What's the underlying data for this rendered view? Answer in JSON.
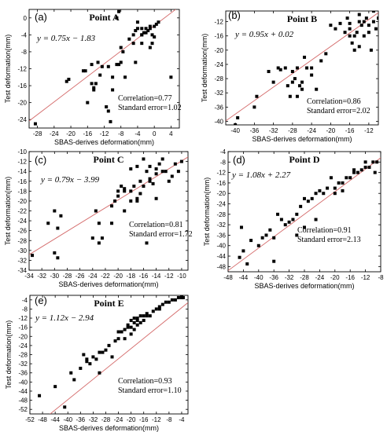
{
  "chart_data": [
    {
      "panel": "(a)",
      "title": "Point A",
      "type": "scatter",
      "xlabel": "SBAS-derives deformation(mm)",
      "ylabel": "Test deformation(mm)",
      "xlim": [
        -30,
        6
      ],
      "ylim": [
        -26,
        2
      ],
      "xticks": [
        "-28",
        "-24",
        "-20",
        "-16",
        "-12",
        "-8",
        "-4",
        "0",
        "4"
      ],
      "yticks": [
        "-24",
        "-20",
        "-16",
        "-12",
        "-8",
        "-4",
        "0"
      ],
      "equation": "y = 0.75x − 1.83",
      "correlation": "Correlation=0.77",
      "std_error": "Standard error=1.02",
      "fit": {
        "slope": 0.75,
        "intercept": -1.83
      },
      "points": [
        [
          -28.5,
          -25
        ],
        [
          -21,
          -15
        ],
        [
          -20.5,
          -14.5
        ],
        [
          -17,
          -12.5
        ],
        [
          -16.5,
          -12.5
        ],
        [
          -16,
          -20
        ],
        [
          -15,
          -11
        ],
        [
          -15,
          -15.5
        ],
        [
          -14.5,
          -16.5
        ],
        [
          -14.5,
          -17
        ],
        [
          -14,
          -15.5
        ],
        [
          -13.5,
          -10.5
        ],
        [
          -13,
          -13.5
        ],
        [
          -12.5,
          -11.5
        ],
        [
          -11.5,
          -21
        ],
        [
          -11,
          -22
        ],
        [
          -10.5,
          -24.5
        ],
        [
          -11,
          -11.5
        ],
        [
          -10,
          -17
        ],
        [
          -10,
          -14
        ],
        [
          -9,
          -11
        ],
        [
          -8.5,
          -11
        ],
        [
          -8,
          -7
        ],
        [
          -7.5,
          -8
        ],
        [
          -7,
          -14
        ],
        [
          -6,
          -5
        ],
        [
          -5,
          -6
        ],
        [
          -5,
          -4
        ],
        [
          -4.5,
          -3
        ],
        [
          -4,
          -1
        ],
        [
          -4,
          -2.5
        ],
        [
          -3,
          -4
        ],
        [
          -3,
          -6
        ],
        [
          -2.5,
          -3.5
        ],
        [
          -2,
          -2.5
        ],
        [
          -1.5,
          -3
        ],
        [
          -1,
          -2
        ],
        [
          -0.5,
          -4
        ],
        [
          0,
          -2
        ],
        [
          0.5,
          -1.5
        ],
        [
          1,
          -1
        ],
        [
          -8,
          -10.5
        ],
        [
          -9,
          0
        ],
        [
          -8.5,
          1.5
        ],
        [
          -4.5,
          -10.5
        ],
        [
          -3,
          -4
        ],
        [
          -3,
          -2.5
        ],
        [
          -2,
          -3.5
        ],
        [
          -1,
          -2.5
        ],
        [
          -0.5,
          -6
        ],
        [
          0,
          -4.5
        ],
        [
          -1,
          -7
        ],
        [
          4,
          -14
        ]
      ]
    },
    {
      "panel": "(b)",
      "title": "Point B",
      "type": "scatter",
      "xlabel": "SBAS-derives deformation(mm)",
      "ylabel": "Test deformation(mm)",
      "xlim": [
        -42,
        -10
      ],
      "ylim": [
        -41,
        -9
      ],
      "xticks": [
        "-40",
        "-36",
        "-32",
        "-28",
        "-24",
        "-20",
        "-16",
        "-12"
      ],
      "yticks": [
        "-40",
        "-36",
        "-32",
        "-28",
        "-24",
        "-20",
        "-16",
        "-12"
      ],
      "equation": "y = 0.95x + 0.02",
      "correlation": "Correlation=0.86",
      "std_error": "Standard error=2.02",
      "fit": {
        "slope": 0.95,
        "intercept": 0.02
      },
      "points": [
        [
          -40,
          -41
        ],
        [
          -39.5,
          -39
        ],
        [
          -36,
          -36
        ],
        [
          -35.5,
          -33
        ],
        [
          -33,
          -26
        ],
        [
          -32,
          -29
        ],
        [
          -31,
          -25
        ],
        [
          -30.5,
          -25.5
        ],
        [
          -29.5,
          -25
        ],
        [
          -29,
          -30
        ],
        [
          -28.5,
          -33
        ],
        [
          -28,
          -26
        ],
        [
          -28,
          -29
        ],
        [
          -27.5,
          -28
        ],
        [
          -27,
          -25
        ],
        [
          -27,
          -33
        ],
        [
          -26.5,
          -30
        ],
        [
          -26,
          -29
        ],
        [
          -26,
          -31
        ],
        [
          -25.5,
          -22
        ],
        [
          -25,
          -25
        ],
        [
          -24,
          -25
        ],
        [
          -24,
          -27
        ],
        [
          -23,
          -31
        ],
        [
          -22,
          -23
        ],
        [
          -21,
          -21
        ],
        [
          -20,
          -13
        ],
        [
          -19,
          -14
        ],
        [
          -18,
          -12.5
        ],
        [
          -17,
          -15
        ],
        [
          -16.5,
          -11
        ],
        [
          -16,
          -14
        ],
        [
          -15.5,
          -18
        ],
        [
          -15,
          -16
        ],
        [
          -14.5,
          -15
        ],
        [
          -14,
          -19
        ],
        [
          -14,
          -12
        ],
        [
          -13.5,
          -13
        ],
        [
          -13,
          -16
        ],
        [
          -12.5,
          -11
        ],
        [
          -12,
          -13
        ],
        [
          -12,
          -15
        ],
        [
          -11.5,
          -20
        ],
        [
          -11,
          -12
        ],
        [
          -11,
          -9
        ],
        [
          -10.5,
          -14
        ],
        [
          -10,
          -11
        ],
        [
          -15,
          -20
        ],
        [
          -16,
          -16
        ],
        [
          -14,
          -10
        ],
        [
          -13,
          -12
        ],
        [
          -16,
          -12.5
        ]
      ]
    },
    {
      "panel": "(c)",
      "title": "Point C",
      "type": "scatter",
      "xlabel": "SBAS-derives deformation(mm)",
      "ylabel": "Test deformation(mm)",
      "xlim": [
        -34,
        -9
      ],
      "ylim": [
        -34,
        -10
      ],
      "xticks": [
        "-34",
        "-32",
        "-30",
        "-28",
        "-26",
        "-24",
        "-22",
        "-20",
        "-18",
        "-16",
        "-14",
        "-12",
        "-10"
      ],
      "yticks": [
        "-34",
        "-32",
        "-30",
        "-28",
        "-26",
        "-24",
        "-22",
        "-20",
        "-18",
        "-16",
        "-14",
        "-12",
        "-10"
      ],
      "equation": "y = 0.79x − 3.99",
      "correlation": "Correlation=0.81",
      "std_error": "Standard error=1.72",
      "fit": {
        "slope": 0.79,
        "intercept": -3.99
      },
      "points": [
        [
          -33.5,
          -31
        ],
        [
          -31,
          -24.5
        ],
        [
          -30,
          -30.5
        ],
        [
          -30,
          -22
        ],
        [
          -29.5,
          -25.5
        ],
        [
          -29.5,
          -31.5
        ],
        [
          -29,
          -23
        ],
        [
          -24,
          -27.5
        ],
        [
          -23.5,
          -22
        ],
        [
          -23,
          -24.5
        ],
        [
          -23,
          -28.5
        ],
        [
          -22.5,
          -27.5
        ],
        [
          -21,
          -24.5
        ],
        [
          -21,
          -21
        ],
        [
          -20.5,
          -20
        ],
        [
          -20,
          -19
        ],
        [
          -20,
          -18
        ],
        [
          -19.5,
          -17
        ],
        [
          -19,
          -22
        ],
        [
          -19,
          -18
        ],
        [
          -18,
          -18
        ],
        [
          -17.5,
          -17
        ],
        [
          -17,
          -20
        ],
        [
          -17,
          -19.5
        ],
        [
          -16.5,
          -18.5
        ],
        [
          -16,
          -17
        ],
        [
          -15.5,
          -14
        ],
        [
          -15.5,
          -28.5
        ],
        [
          -15,
          -13
        ],
        [
          -15,
          -16
        ],
        [
          -14.5,
          -16.5
        ],
        [
          -14,
          -13.5
        ],
        [
          -14,
          -19.5
        ],
        [
          -13.5,
          -12.5
        ],
        [
          -13,
          -14
        ],
        [
          -13,
          -11.5
        ],
        [
          -12.5,
          -14
        ],
        [
          -12,
          -16
        ],
        [
          -11.5,
          -15
        ],
        [
          -11,
          -12.5
        ],
        [
          -10.5,
          -14
        ],
        [
          -10,
          -12
        ],
        [
          -19,
          -17.5
        ],
        [
          -18,
          -20
        ],
        [
          -16.5,
          -16
        ],
        [
          -17,
          -13
        ],
        [
          -16,
          -11.5
        ],
        [
          -15,
          -15.5
        ],
        [
          -14,
          -14.5
        ],
        [
          -18,
          -13.5
        ]
      ]
    },
    {
      "panel": "(d)",
      "title": "Point D",
      "type": "scatter",
      "xlabel": "SBAS-derives deformation(mm)",
      "ylabel": "Test deformation(mm)",
      "xlim": [
        -48,
        -8
      ],
      "ylim": [
        -50,
        -4
      ],
      "xticks": [
        "-48",
        "-44",
        "-40",
        "-36",
        "-32",
        "-28",
        "-24",
        "-20",
        "-16",
        "-12",
        "-8"
      ],
      "yticks": [
        "-48",
        "-44",
        "-40",
        "-36",
        "-32",
        "-28",
        "-24",
        "-20",
        "-16",
        "-12",
        "-8",
        "-4"
      ],
      "equation": "y = 1.08x + 2.27",
      "correlation": "Correlation=0.91",
      "std_error": "Standard error=2.13",
      "fit": {
        "slope": 1.08,
        "intercept": 2.27
      },
      "points": [
        [
          -45,
          -44.5
        ],
        [
          -44.5,
          -33
        ],
        [
          -44,
          -42
        ],
        [
          -43,
          -47
        ],
        [
          -42,
          -38
        ],
        [
          -40,
          -40
        ],
        [
          -39,
          -37
        ],
        [
          -38,
          -36
        ],
        [
          -37,
          -34
        ],
        [
          -36,
          -46
        ],
        [
          -36,
          -37
        ],
        [
          -35,
          -28
        ],
        [
          -34,
          -30
        ],
        [
          -33,
          -32
        ],
        [
          -32,
          -31
        ],
        [
          -31,
          -30
        ],
        [
          -30,
          -28
        ],
        [
          -29,
          -25
        ],
        [
          -28,
          -22
        ],
        [
          -28,
          -33
        ],
        [
          -27,
          -23
        ],
        [
          -26,
          -22
        ],
        [
          -25,
          -20
        ],
        [
          -24,
          -19
        ],
        [
          -23,
          -20
        ],
        [
          -22,
          -18
        ],
        [
          -21,
          -14
        ],
        [
          -20,
          -18
        ],
        [
          -19,
          -16
        ],
        [
          -18,
          -19
        ],
        [
          -17,
          -14
        ],
        [
          -16,
          -14
        ],
        [
          -15,
          -12
        ],
        [
          -14,
          -12
        ],
        [
          -13,
          -11
        ],
        [
          -12,
          -10
        ],
        [
          -11,
          -10
        ],
        [
          -10,
          -8
        ],
        [
          -9.5,
          -12
        ],
        [
          -9,
          -8
        ],
        [
          -12,
          -8
        ],
        [
          -30,
          -36
        ],
        [
          -25,
          -30
        ],
        [
          -20,
          -20
        ],
        [
          -18,
          -16
        ],
        [
          -15,
          -11
        ]
      ]
    },
    {
      "panel": "(e)",
      "title": "Point E",
      "type": "scatter",
      "xlabel": "SBAS-derives deformation(mm)",
      "ylabel": "Test deformation(mm)",
      "xlim": [
        -52,
        -2
      ],
      "ylim": [
        -54,
        -2
      ],
      "xticks": [
        "-52",
        "-48",
        "-44",
        "-40",
        "-36",
        "-32",
        "-28",
        "-24",
        "-20",
        "-16",
        "-12",
        "-8",
        "-4"
      ],
      "yticks": [
        "-52",
        "-48",
        "-44",
        "-40",
        "-36",
        "-32",
        "-28",
        "-24",
        "-20",
        "-16",
        "-12",
        "-8",
        "-4"
      ],
      "equation": "y = 1.12x − 2.94",
      "correlation": "Correlation=0.93",
      "std_error": "Standard error=1.10",
      "fit": {
        "slope": 1.12,
        "intercept": -2.94
      },
      "points": [
        [
          -49,
          -46
        ],
        [
          -44,
          -42
        ],
        [
          -41,
          -51
        ],
        [
          -39,
          -36
        ],
        [
          -38,
          -39
        ],
        [
          -36,
          -34
        ],
        [
          -35,
          -28
        ],
        [
          -34,
          -30
        ],
        [
          -34,
          -31
        ],
        [
          -33,
          -32
        ],
        [
          -32,
          -29
        ],
        [
          -31,
          -30
        ],
        [
          -30,
          -36
        ],
        [
          -30,
          -27
        ],
        [
          -29,
          -27
        ],
        [
          -28,
          -26
        ],
        [
          -27,
          -24
        ],
        [
          -26,
          -29
        ],
        [
          -25,
          -22
        ],
        [
          -24,
          -21
        ],
        [
          -23,
          -18
        ],
        [
          -22,
          -17
        ],
        [
          -21,
          -15
        ],
        [
          -21,
          -16
        ],
        [
          -20,
          -13
        ],
        [
          -20,
          -19
        ],
        [
          -19,
          -12
        ],
        [
          -19,
          -14
        ],
        [
          -18,
          -15
        ],
        [
          -18,
          -12
        ],
        [
          -17,
          -14
        ],
        [
          -17,
          -11
        ],
        [
          -16,
          -13
        ],
        [
          -15,
          -11
        ],
        [
          -15,
          -10
        ],
        [
          -14,
          -11
        ],
        [
          -13,
          -9
        ],
        [
          -12,
          -8
        ],
        [
          -11,
          -7
        ],
        [
          -11,
          -8
        ],
        [
          -10,
          -6
        ],
        [
          -9,
          -5
        ],
        [
          -8,
          -5
        ],
        [
          -7,
          -4
        ],
        [
          -6,
          -4
        ],
        [
          -5,
          -3
        ],
        [
          -4,
          -3
        ],
        [
          -4,
          -2.5
        ],
        [
          -3.5,
          -3
        ],
        [
          -24,
          -18
        ],
        [
          -22,
          -21
        ],
        [
          -20,
          -16
        ],
        [
          -19,
          -17
        ],
        [
          -18,
          -13
        ],
        [
          -16,
          -11
        ]
      ]
    }
  ]
}
